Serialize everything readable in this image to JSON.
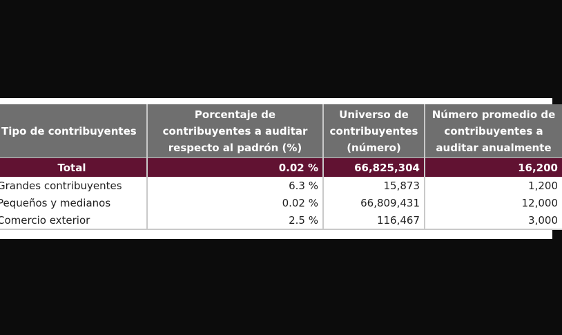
{
  "table": {
    "headers": [
      "Tipo de contribuyentes",
      "Porcentaje de contribuyentes a auditar respecto al padrón (%)",
      "Universo de contribuyentes (número)",
      "Número promedio de contribuyentes a auditar anualmente"
    ],
    "total": {
      "label": "Total",
      "porcentaje": "0.02 %",
      "universo": "66,825,304",
      "promedio": "16,200"
    },
    "rows": [
      {
        "label": "Grandes contribuyentes",
        "porcentaje": "6.3 %",
        "universo": "15,873",
        "promedio": "1,200"
      },
      {
        "label": "Pequeños y medianos",
        "porcentaje": "0.02 %",
        "universo": "66,809,431",
        "promedio": "12,000"
      },
      {
        "label": "Comercio exterior",
        "porcentaje": "2.5 %",
        "universo": "116,467",
        "promedio": "3,000"
      }
    ]
  },
  "colors": {
    "header_bg": "#6f6f6f",
    "total_bg": "#611232",
    "page_bg": "#0c0c0c"
  }
}
